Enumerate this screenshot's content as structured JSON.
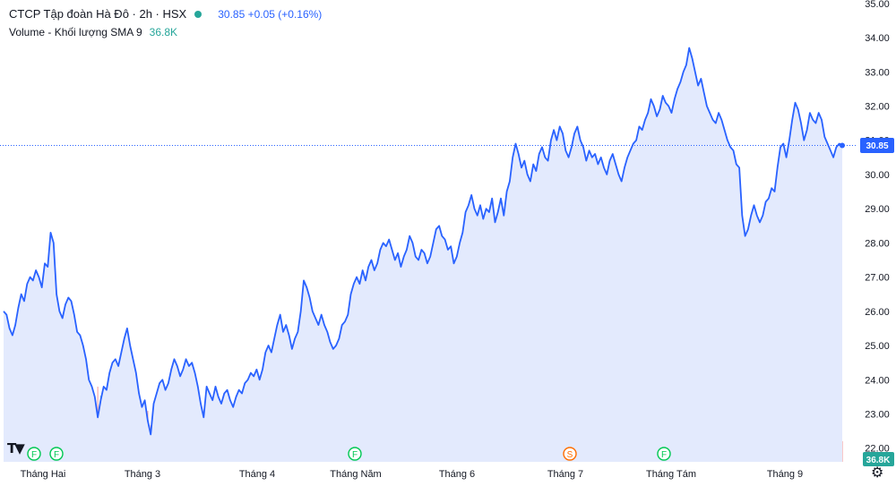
{
  "legend": {
    "title": "CTCP Tập đoàn Hà Đô · 2h · HSX",
    "quote": "30.85 +0.05 (+0.16%)",
    "volume_label": "Volume - Khối lượng SMA 9",
    "volume_value": "36.8K"
  },
  "price_tag": "30.85",
  "volume_tag": "36.8K",
  "colors": {
    "line": "#2962ff",
    "area": "#e3eafd",
    "vol_up": "#26a69a",
    "vol_down": "#ef5350",
    "status_dot": "#26a69a"
  },
  "icons": {
    "logo": "tradingview-logo-icon",
    "settings": "gear-icon"
  },
  "chart_data": {
    "type": "area",
    "yaxis_position": "right",
    "ylim": [
      21.6,
      35.1
    ],
    "y_ticks": [
      "22.00",
      "23.00",
      "24.00",
      "25.00",
      "26.00",
      "27.00",
      "28.00",
      "29.00",
      "30.00",
      "31.00",
      "32.00",
      "33.00",
      "34.00",
      "35.00"
    ],
    "x_tick_labels": [
      "Tháng Hai",
      "Tháng 3",
      "Tháng 4",
      "Tháng Năm",
      "Tháng 6",
      "Tháng 7",
      "Tháng Tám",
      "Tháng 9"
    ],
    "event_markers": [
      "F",
      "F",
      "F",
      "S",
      "F"
    ],
    "series": [
      {
        "name": "",
        "values": [
          26.0,
          25.9,
          25.5,
          25.3,
          25.6,
          26.1,
          26.5,
          26.3,
          26.8,
          27.0,
          26.9,
          27.2,
          27.0,
          26.7,
          27.4,
          27.3,
          28.3,
          28.0,
          26.5,
          26.0,
          25.8,
          26.2,
          26.4,
          26.3,
          25.9,
          25.4,
          25.3,
          25.0,
          24.6,
          24.0,
          23.8,
          23.5,
          22.9,
          23.4,
          23.8,
          23.7,
          24.2,
          24.5,
          24.6,
          24.4,
          24.8,
          25.2,
          25.5,
          25.0,
          24.6,
          24.2,
          23.6,
          23.2,
          23.4,
          22.8,
          22.4,
          23.3,
          23.6,
          23.9,
          24.0,
          23.7,
          23.9,
          24.3,
          24.6,
          24.4,
          24.1,
          24.3,
          24.6,
          24.4,
          24.5,
          24.2,
          23.8,
          23.3,
          22.9,
          23.8,
          23.6,
          23.4,
          23.8,
          23.5,
          23.3,
          23.6,
          23.7,
          23.4,
          23.2,
          23.5,
          23.7,
          23.6,
          23.9,
          24.0,
          24.2,
          24.1,
          24.3,
          24.0,
          24.3,
          24.8,
          25.0,
          24.8,
          25.2,
          25.6,
          25.9,
          25.4,
          25.6,
          25.3,
          24.9,
          25.2,
          25.4,
          26.0,
          26.9,
          26.7,
          26.4,
          26.0,
          25.8,
          25.6,
          25.9,
          25.6,
          25.4,
          25.1,
          24.9,
          25.0,
          25.2,
          25.6,
          25.7,
          25.9,
          26.5,
          26.8,
          27.0,
          26.8,
          27.2,
          26.9,
          27.3,
          27.5,
          27.2,
          27.4,
          27.8,
          28.0,
          27.9,
          28.1,
          27.8,
          27.5,
          27.7,
          27.3,
          27.6,
          27.8,
          28.2,
          28.0,
          27.6,
          27.5,
          27.8,
          27.7,
          27.4,
          27.6,
          28.0,
          28.4,
          28.5,
          28.2,
          28.1,
          27.8,
          27.9,
          27.4,
          27.6,
          28.0,
          28.3,
          28.9,
          29.1,
          29.4,
          29.0,
          28.8,
          29.1,
          28.7,
          29.0,
          28.9,
          29.3,
          28.6,
          28.9,
          29.3,
          28.8,
          29.5,
          29.8,
          30.5,
          30.9,
          30.6,
          30.2,
          30.4,
          30.0,
          29.8,
          30.3,
          30.1,
          30.6,
          30.8,
          30.5,
          30.4,
          31.0,
          31.3,
          31.0,
          31.4,
          31.2,
          30.7,
          30.5,
          30.8,
          31.2,
          31.4,
          31.0,
          30.8,
          30.4,
          30.7,
          30.5,
          30.6,
          30.3,
          30.5,
          30.2,
          30.0,
          30.4,
          30.6,
          30.3,
          30.0,
          29.8,
          30.2,
          30.5,
          30.7,
          30.9,
          31.0,
          31.4,
          31.3,
          31.6,
          31.8,
          32.2,
          32.0,
          31.7,
          31.9,
          32.3,
          32.1,
          32.0,
          31.8,
          32.2,
          32.5,
          32.7,
          33.0,
          33.2,
          33.7,
          33.4,
          33.0,
          32.6,
          32.8,
          32.4,
          32.0,
          31.8,
          31.6,
          31.5,
          31.8,
          31.6,
          31.3,
          31.0,
          30.8,
          30.7,
          30.3,
          30.2,
          28.8,
          28.2,
          28.4,
          28.8,
          29.1,
          28.8,
          28.6,
          28.8,
          29.2,
          29.3,
          29.6,
          29.5,
          30.2,
          30.8,
          30.9,
          30.5,
          31.0,
          31.6,
          32.1,
          31.9,
          31.5,
          31.0,
          31.3,
          31.8,
          31.6,
          31.5,
          31.8,
          31.6,
          31.1,
          30.9,
          30.7,
          30.5,
          30.8,
          30.9,
          30.85
        ]
      }
    ],
    "volume_last": "36.8K"
  }
}
